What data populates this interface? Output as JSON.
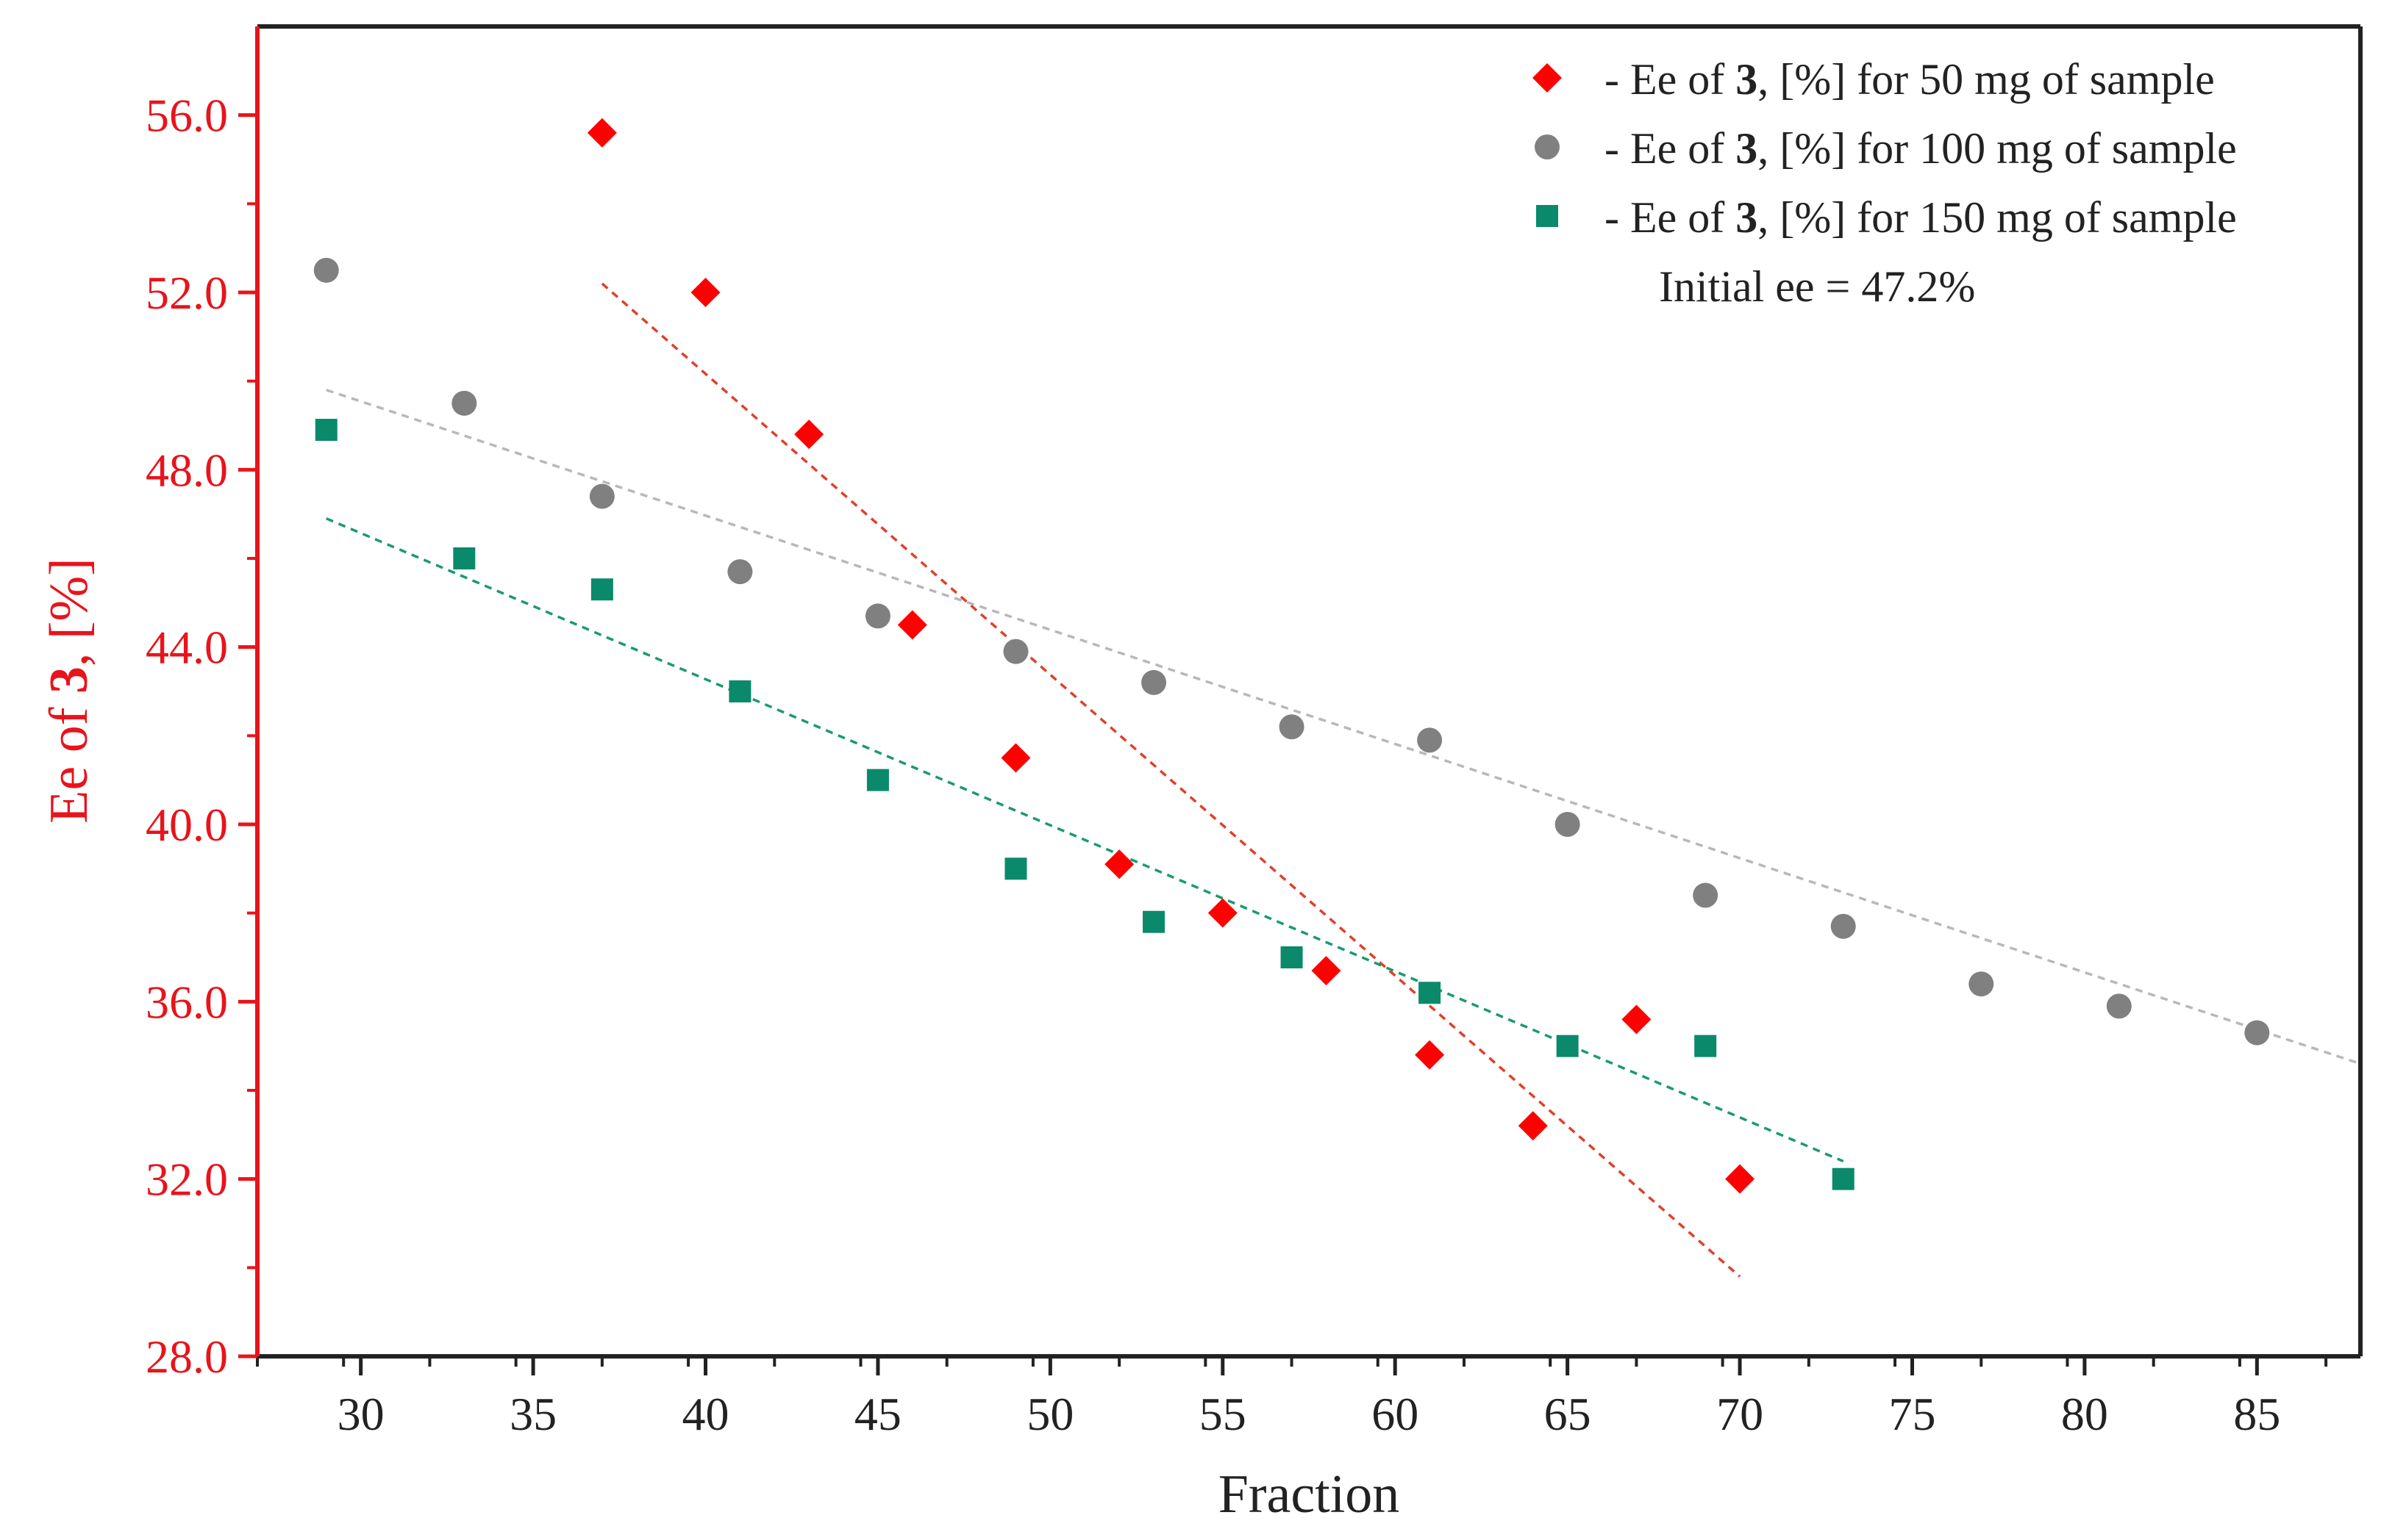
{
  "chart_data": {
    "type": "scatter",
    "title": "",
    "xlabel": "Fraction",
    "ylabel_parts": [
      "Ee of ",
      "3",
      ", [%]"
    ],
    "xlim": [
      27,
      88
    ],
    "ylim": [
      28,
      58
    ],
    "x_ticks": [
      30,
      35,
      40,
      45,
      50,
      55,
      60,
      65,
      70,
      75,
      80,
      85
    ],
    "y_ticks": [
      28,
      32,
      36,
      40,
      44,
      48,
      52,
      56
    ],
    "y_tick_labels": [
      "28.0",
      "32.0",
      "36.0",
      "40.0",
      "44.0",
      "48.0",
      "52.0",
      "56.0"
    ],
    "x_tick_labels": [
      "30",
      "35",
      "40",
      "45",
      "50",
      "55",
      "60",
      "65",
      "70",
      "75",
      "80",
      "85"
    ],
    "grid": false,
    "legend_position": "top-right",
    "annotation": "Initial ee = 47.2%",
    "series": [
      {
        "name": "Ee of 3, [%] for 50 mg of sample",
        "legend_parts": [
          "-   Ee of ",
          "3",
          ", [%] for 50 mg of sample"
        ],
        "marker": "diamond",
        "color": "#ff0000",
        "x": [
          37,
          40,
          43,
          46,
          49,
          52,
          55,
          58,
          61,
          64,
          67,
          70
        ],
        "y": [
          55.6,
          52.0,
          48.8,
          44.5,
          41.5,
          39.1,
          38.0,
          36.7,
          34.8,
          33.2,
          35.6,
          32.0
        ],
        "trendline": {
          "x": [
            37,
            70
          ],
          "y": [
            52.2,
            29.8
          ],
          "color": "#e0402a"
        }
      },
      {
        "name": "Ee of 3, [%] for 100 mg of sample",
        "legend_parts": [
          "-   Ee of ",
          "3",
          ", [%] for 100 mg of sample"
        ],
        "marker": "circle",
        "color": "#808080",
        "x": [
          29,
          33,
          37,
          41,
          45,
          49,
          53,
          57,
          61,
          65,
          69,
          73,
          77,
          81,
          85
        ],
        "y": [
          52.5,
          49.5,
          47.4,
          45.7,
          44.7,
          43.9,
          43.2,
          42.2,
          41.9,
          40.0,
          38.4,
          37.7,
          36.4,
          35.9,
          35.3
        ],
        "trendline": {
          "x": [
            29,
            88
          ],
          "y": [
            49.8,
            34.6
          ],
          "color": "#b8b8b8"
        }
      },
      {
        "name": "Ee of 3, [%] for 150 mg of sample",
        "legend_parts": [
          "-   Ee of ",
          "3",
          ", [%] for 150 mg of sample"
        ],
        "marker": "square",
        "color": "#0a8a6a",
        "x": [
          29,
          33,
          37,
          41,
          45,
          49,
          53,
          57,
          61,
          65,
          69,
          73
        ],
        "y": [
          48.9,
          46.0,
          45.3,
          43.0,
          41.0,
          39.0,
          37.8,
          37.0,
          36.2,
          35.0,
          35.0,
          32.0
        ],
        "trendline": {
          "x": [
            29,
            73
          ],
          "y": [
            46.9,
            32.4
          ],
          "color": "#1a9a70"
        }
      }
    ],
    "colors": {
      "axis_left": "#e8141b",
      "frame": "#222222",
      "y_text": "#e8141b",
      "x_text": "#222222"
    }
  }
}
